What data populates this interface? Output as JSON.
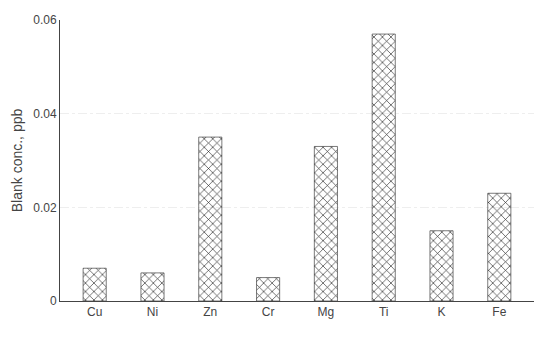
{
  "chart_data": {
    "type": "bar",
    "categories": [
      "Cu",
      "Ni",
      "Zn",
      "Cr",
      "Mg",
      "Ti",
      "K",
      "Fe"
    ],
    "values": [
      0.007,
      0.006,
      0.035,
      0.005,
      0.033,
      0.057,
      0.015,
      0.023
    ],
    "color": "#6e6e6e",
    "ylabel": "Blank conc., ppb",
    "ylim": [
      0,
      0.06
    ],
    "yticks": [
      0,
      0.02,
      0.04,
      0.06
    ],
    "grid": true
  }
}
